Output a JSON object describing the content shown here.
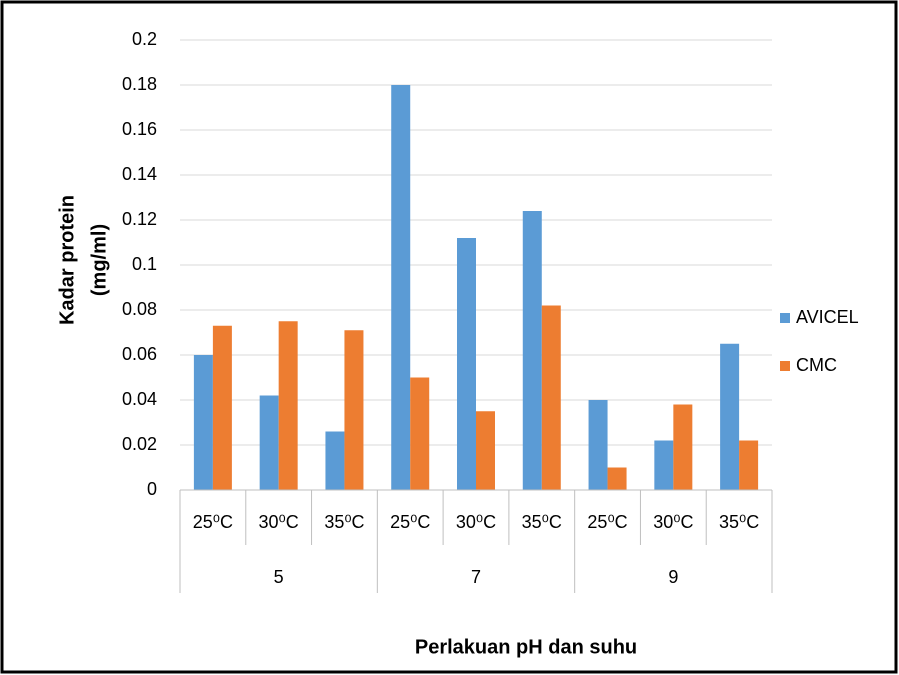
{
  "chart_data": {
    "type": "bar",
    "ylabel": [
      "Kadar  protein",
      "(mg/ml)"
    ],
    "xlabel": "Perlakuan pH dan suhu",
    "categories": [
      "25⁰C",
      "30⁰C",
      "35⁰C",
      "25⁰C",
      "30⁰C",
      "35⁰C",
      "25⁰C",
      "30⁰C",
      "35⁰C"
    ],
    "category_groups": [
      "5",
      "7",
      "9"
    ],
    "series": [
      {
        "name": "AVICEL",
        "color": "#5b9bd5",
        "values": [
          0.06,
          0.042,
          0.026,
          0.18,
          0.112,
          0.124,
          0.04,
          0.022,
          0.065
        ]
      },
      {
        "name": "CMC",
        "color": "#ed7d31",
        "values": [
          0.073,
          0.075,
          0.071,
          0.05,
          0.035,
          0.082,
          0.01,
          0.038,
          0.022
        ]
      }
    ],
    "ylim": [
      0,
      0.2
    ],
    "yticks": [
      0,
      0.02,
      0.04,
      0.06,
      0.08,
      0.1,
      0.12,
      0.14,
      0.16,
      0.18,
      0.2
    ],
    "grid": true,
    "legend": "right"
  }
}
